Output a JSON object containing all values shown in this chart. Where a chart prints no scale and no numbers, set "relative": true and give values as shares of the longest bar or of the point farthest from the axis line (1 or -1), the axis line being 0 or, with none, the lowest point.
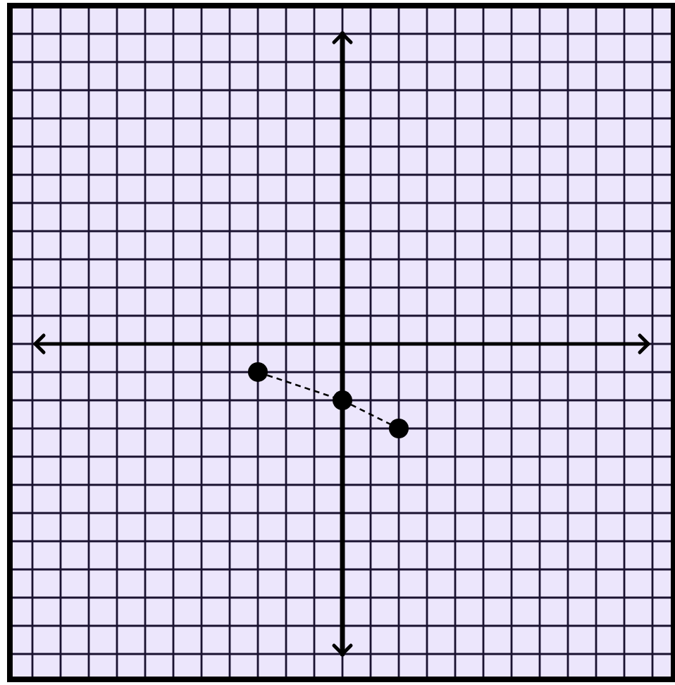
{
  "chart_data": {
    "type": "line",
    "relative": true,
    "categories": [
      null,
      null,
      null,
      null,
      null,
      null,
      null,
      null,
      null,
      null,
      null,
      null,
      null,
      null,
      null,
      null,
      null,
      null,
      null,
      null,
      null,
      null,
      null
    ],
    "series": [
      {
        "color": "#000000",
        "values": [
          null,
          null,
          null,
          null,
          null,
          null,
          null,
          null,
          -0.333,
          null,
          null,
          -0.667,
          null,
          -1,
          null,
          null,
          null,
          null,
          null,
          null,
          null,
          null,
          null
        ]
      }
    ],
    "grid": true,
    "marker": "circle",
    "line_style": "dashed"
  }
}
